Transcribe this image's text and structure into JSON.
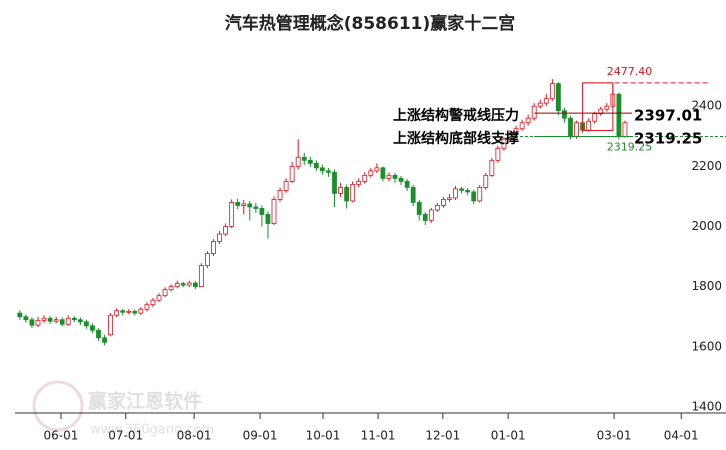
{
  "chart_data": {
    "type": "candlestick",
    "title": "汽车热管理概念(858611)赢家十二宫",
    "open": [
      1712,
      1700,
      1690,
      1672,
      1688,
      1695,
      1685,
      1690,
      1675,
      1695,
      1690,
      1683,
      1670,
      1655,
      1630,
      1640,
      1705,
      1720,
      1715,
      1718,
      1712,
      1725,
      1740,
      1755,
      1770,
      1790,
      1800,
      1810,
      1805,
      1812,
      1800,
      1870,
      1910,
      1950,
      1975,
      2000,
      2080,
      2070,
      2075,
      2065,
      2060,
      2040,
      2010,
      2090,
      2120,
      2150,
      2200,
      2230,
      2220,
      2210,
      2195,
      2185,
      2180,
      2110,
      2130,
      2085,
      2140,
      2150,
      2170,
      2185,
      2195,
      2160,
      2170,
      2160,
      2150,
      2130,
      2080,
      2040,
      2020,
      2055,
      2070,
      2090,
      2095,
      2125,
      2120,
      2115,
      2085,
      2130,
      2170,
      2220,
      2260,
      2290,
      2310,
      2325,
      2345,
      2360,
      2400,
      2410,
      2425,
      2475,
      2385,
      2360,
      2300,
      2345,
      2320,
      2350,
      2375,
      2390,
      2400,
      2440,
      2300
    ],
    "high": [
      1722,
      1708,
      1698,
      1700,
      1705,
      1702,
      1700,
      1698,
      1705,
      1702,
      1698,
      1690,
      1678,
      1662,
      1640,
      1712,
      1728,
      1726,
      1725,
      1724,
      1732,
      1748,
      1762,
      1778,
      1798,
      1808,
      1820,
      1816,
      1820,
      1818,
      1878,
      1918,
      1958,
      1985,
      2010,
      2090,
      2092,
      2088,
      2085,
      2078,
      2070,
      2050,
      2100,
      2130,
      2160,
      2215,
      2290,
      2245,
      2232,
      2220,
      2205,
      2195,
      2190,
      2145,
      2140,
      2150,
      2160,
      2180,
      2195,
      2210,
      2200,
      2180,
      2178,
      2168,
      2158,
      2138,
      2088,
      2048,
      2062,
      2078,
      2098,
      2108,
      2135,
      2132,
      2128,
      2122,
      2138,
      2178,
      2228,
      2268,
      2298,
      2320,
      2335,
      2355,
      2372,
      2410,
      2422,
      2440,
      2490,
      2480,
      2395,
      2368,
      2352,
      2350,
      2360,
      2382,
      2398,
      2410,
      2477.4,
      2445,
      2352
    ],
    "low": [
      1690,
      1680,
      1662,
      1665,
      1680,
      1675,
      1678,
      1668,
      1670,
      1682,
      1672,
      1660,
      1645,
      1620,
      1605,
      1635,
      1698,
      1705,
      1708,
      1704,
      1706,
      1718,
      1732,
      1748,
      1765,
      1784,
      1794,
      1798,
      1798,
      1792,
      1798,
      1862,
      1902,
      1942,
      1968,
      1995,
      2058,
      2040,
      2020,
      2045,
      2000,
      1960,
      2005,
      2082,
      2112,
      2145,
      2190,
      2205,
      2198,
      2185,
      2172,
      2165,
      2065,
      2098,
      2060,
      2080,
      2130,
      2142,
      2162,
      2178,
      2150,
      2150,
      2145,
      2138,
      2118,
      2068,
      2020,
      2005,
      2012,
      2048,
      2062,
      2082,
      2088,
      2110,
      2105,
      2075,
      2080,
      2122,
      2165,
      2212,
      2252,
      2282,
      2302,
      2318,
      2335,
      2352,
      2392,
      2400,
      2418,
      2370,
      2345,
      2290,
      2292,
      2310,
      2315,
      2342,
      2368,
      2382,
      2395,
      2290,
      2295
    ],
    "close": [
      1700,
      1690,
      1672,
      1688,
      1695,
      1685,
      1690,
      1675,
      1695,
      1690,
      1683,
      1670,
      1655,
      1630,
      1615,
      1705,
      1720,
      1715,
      1718,
      1712,
      1725,
      1740,
      1755,
      1770,
      1790,
      1800,
      1810,
      1805,
      1812,
      1800,
      1870,
      1910,
      1950,
      1975,
      2000,
      2080,
      2070,
      2075,
      2065,
      2060,
      2040,
      2010,
      2090,
      2120,
      2150,
      2200,
      2230,
      2220,
      2210,
      2195,
      2185,
      2180,
      2110,
      2130,
      2085,
      2140,
      2150,
      2170,
      2185,
      2195,
      2160,
      2170,
      2160,
      2150,
      2130,
      2080,
      2040,
      2020,
      2055,
      2070,
      2090,
      2095,
      2125,
      2120,
      2115,
      2085,
      2130,
      2170,
      2220,
      2260,
      2290,
      2310,
      2325,
      2345,
      2360,
      2400,
      2410,
      2425,
      2475,
      2385,
      2360,
      2300,
      2345,
      2320,
      2350,
      2375,
      2390,
      2400,
      2440,
      2300,
      2345
    ],
    "up_color": "#e0141e",
    "down_color": "#1a8f2c",
    "xlim": [
      -0.8,
      112.4
    ],
    "xticks": [
      {
        "value": 6.8,
        "label": "06-01"
      },
      {
        "value": 17.5,
        "label": "07-01"
      },
      {
        "value": 28.8,
        "label": "08-01"
      },
      {
        "value": 39.7,
        "label": "09-01"
      },
      {
        "value": 50.1,
        "label": "10-01"
      },
      {
        "value": 59.2,
        "label": "11-01"
      },
      {
        "value": 69.9,
        "label": "12-01"
      },
      {
        "value": 80.7,
        "label": "01-01"
      },
      {
        "value": 98.2,
        "label": "03-01"
      },
      {
        "value": 109.3,
        "label": "04-01"
      }
    ],
    "ylim": [
      1380,
      2620
    ],
    "yticks": [
      1400,
      1600,
      1800,
      2000,
      2200,
      2400
    ],
    "levels": [
      {
        "name": "上涨结构警戒线压力",
        "value": 2397.01,
        "color": "#8b0000"
      },
      {
        "name": "上涨结构底部线支撑",
        "value": 2319.25,
        "color": "#1a8f2c"
      }
    ],
    "high_marker": {
      "value": 2477.4,
      "label": "2477.40",
      "color": "#e0141e"
    },
    "low_marker": {
      "value": 2319.25,
      "color": "#1a8f2c"
    }
  },
  "watermark": {
    "name": "赢家江恩软件",
    "url": "www.360gann.com"
  }
}
